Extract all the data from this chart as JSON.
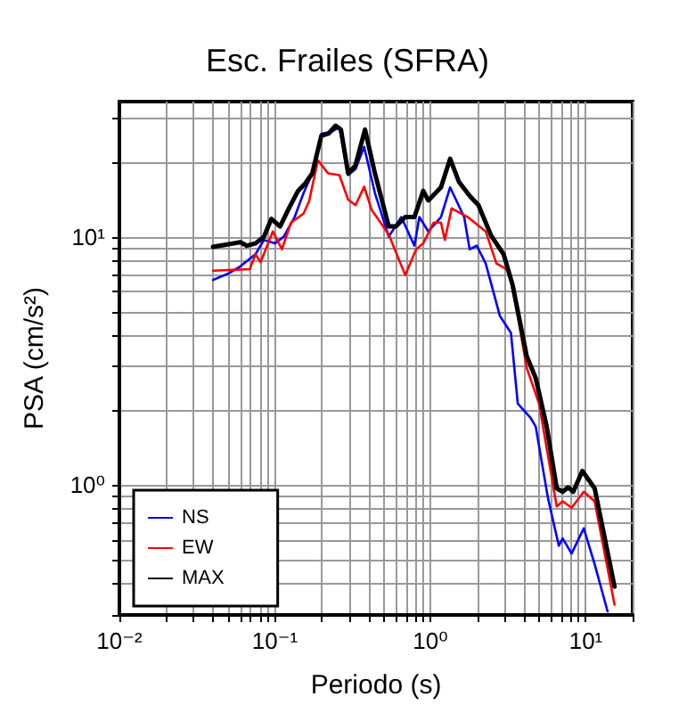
{
  "chart_data": {
    "type": "line",
    "title": "Esc. Frailes (SFRA)",
    "xlabel": "Periodo (s)",
    "ylabel": "PSA (cm/s²)",
    "log": "xy",
    "xlim": [
      0.01,
      20
    ],
    "ylim": [
      0.3,
      35
    ],
    "xticks": [
      {
        "value": 0.01,
        "label": "10⁻²"
      },
      {
        "value": 0.02,
        "label": null
      },
      {
        "value": 0.03,
        "label": null
      },
      {
        "value": 0.04,
        "label": null
      },
      {
        "value": 0.05,
        "label": null
      },
      {
        "value": 0.06,
        "label": null
      },
      {
        "value": 0.07,
        "label": null
      },
      {
        "value": 0.08,
        "label": null
      },
      {
        "value": 0.09,
        "label": null
      },
      {
        "value": 0.1,
        "label": "10⁻¹"
      },
      {
        "value": 0.2,
        "label": null
      },
      {
        "value": 0.3,
        "label": null
      },
      {
        "value": 0.4,
        "label": null
      },
      {
        "value": 0.5,
        "label": null
      },
      {
        "value": 0.6,
        "label": null
      },
      {
        "value": 0.7,
        "label": null
      },
      {
        "value": 0.8,
        "label": null
      },
      {
        "value": 0.9,
        "label": null
      },
      {
        "value": 1,
        "label": "10⁰"
      },
      {
        "value": 2,
        "label": null
      },
      {
        "value": 3,
        "label": null
      },
      {
        "value": 4,
        "label": null
      },
      {
        "value": 5,
        "label": null
      },
      {
        "value": 6,
        "label": null
      },
      {
        "value": 7,
        "label": null
      },
      {
        "value": 8,
        "label": null
      },
      {
        "value": 9,
        "label": null
      },
      {
        "value": 10,
        "label": "10¹"
      },
      {
        "value": 20,
        "label": null
      }
    ],
    "yticks": [
      {
        "value": 0.3,
        "label": null
      },
      {
        "value": 0.4,
        "label": null
      },
      {
        "value": 0.5,
        "label": null
      },
      {
        "value": 0.6,
        "label": null
      },
      {
        "value": 0.7,
        "label": null
      },
      {
        "value": 0.8,
        "label": null
      },
      {
        "value": 0.9,
        "label": null
      },
      {
        "value": 1,
        "label": "10⁰"
      },
      {
        "value": 2,
        "label": null
      },
      {
        "value": 3,
        "label": null
      },
      {
        "value": 4,
        "label": null
      },
      {
        "value": 5,
        "label": null
      },
      {
        "value": 6,
        "label": null
      },
      {
        "value": 7,
        "label": null
      },
      {
        "value": 8,
        "label": null
      },
      {
        "value": 9,
        "label": null
      },
      {
        "value": 10,
        "label": "10¹"
      },
      {
        "value": 20,
        "label": null
      },
      {
        "value": 30,
        "label": null
      }
    ],
    "grid": true,
    "legend": "bottom left",
    "marker": "none",
    "line_style": "solid",
    "series": [
      {
        "name": "NS",
        "color": "#0000ff",
        "x": [
          0.04,
          0.05,
          0.06,
          0.075,
          0.085,
          0.1,
          0.114,
          0.134,
          0.153,
          0.174,
          0.199,
          0.23,
          0.26,
          0.296,
          0.33,
          0.375,
          0.44,
          0.54,
          0.65,
          0.79,
          0.85,
          0.97,
          1.17,
          1.34,
          1.65,
          1.79,
          1.99,
          2.27,
          2.8,
          3.3,
          3.65,
          4.4,
          4.76,
          5.7,
          6.7,
          7.1,
          8.1,
          9.7,
          11.4,
          13.8
        ],
        "values": [
          6.7,
          7.1,
          7.6,
          8.5,
          9.7,
          9.4,
          10,
          12,
          15,
          18,
          26,
          26.4,
          27.6,
          17.7,
          18.7,
          23,
          15,
          10,
          12,
          9.2,
          12,
          10.5,
          12,
          15.8,
          12,
          8.9,
          9.2,
          7.8,
          4.8,
          4.1,
          2.13,
          1.87,
          1.72,
          0.89,
          0.57,
          0.61,
          0.53,
          0.67,
          0.48,
          0.31
        ]
      },
      {
        "name": "EW",
        "color": "#ff0000",
        "x": [
          0.04,
          0.069,
          0.075,
          0.081,
          0.097,
          0.111,
          0.127,
          0.153,
          0.166,
          0.189,
          0.22,
          0.26,
          0.296,
          0.33,
          0.375,
          0.42,
          0.46,
          0.54,
          0.69,
          0.81,
          0.9,
          1.05,
          1.17,
          1.24,
          1.37,
          1.74,
          2.27,
          2.66,
          3.2,
          3.65,
          4.17,
          5,
          6.5,
          7.1,
          8.1,
          9.7,
          11.4,
          15.3
        ],
        "values": [
          7.3,
          7.4,
          8.5,
          7.9,
          10.5,
          8.9,
          11.4,
          12.4,
          13.9,
          20.3,
          18,
          17.7,
          14.1,
          13.4,
          15.9,
          12.8,
          11.8,
          10.2,
          7,
          8.9,
          9.4,
          11.4,
          11.4,
          9.7,
          13,
          12,
          10.5,
          7.8,
          7.3,
          4.8,
          2.96,
          2.13,
          0.82,
          0.86,
          0.81,
          0.94,
          0.86,
          0.33
        ]
      },
      {
        "name": "MAX",
        "color": "#000000",
        "x": [
          0.04,
          0.06,
          0.066,
          0.075,
          0.085,
          0.095,
          0.108,
          0.123,
          0.141,
          0.157,
          0.174,
          0.199,
          0.221,
          0.246,
          0.266,
          0.296,
          0.329,
          0.38,
          0.44,
          0.54,
          0.6,
          0.69,
          0.79,
          0.9,
          0.97,
          1.17,
          1.34,
          1.53,
          1.79,
          2.04,
          2.46,
          2.96,
          3.38,
          4.17,
          4.76,
          5.6,
          6.5,
          7.1,
          7.7,
          8.3,
          9.5,
          11.4,
          15.3
        ],
        "values": [
          9.1,
          9.5,
          9.2,
          9.4,
          10,
          11.8,
          11,
          13,
          15.3,
          16.4,
          18,
          25.5,
          26,
          28,
          27,
          18,
          19.3,
          27,
          18,
          11,
          11,
          12,
          12,
          15.3,
          14,
          15.8,
          20.6,
          16.6,
          14.6,
          13.4,
          10.1,
          8.5,
          6.4,
          3.3,
          2.7,
          1.72,
          0.97,
          0.94,
          0.98,
          0.94,
          1.14,
          0.97,
          0.39
        ]
      }
    ]
  }
}
